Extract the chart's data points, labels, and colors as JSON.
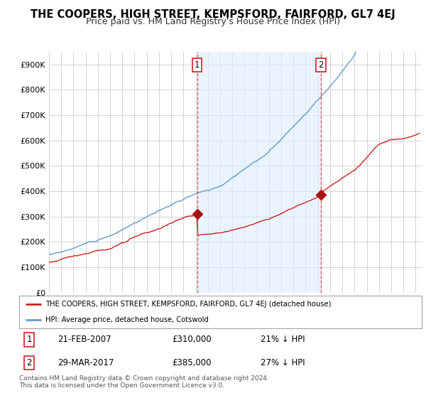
{
  "title": "THE COOPERS, HIGH STREET, KEMPSFORD, FAIRFORD, GL7 4EJ",
  "subtitle": "Price paid vs. HM Land Registry's House Price Index (HPI)",
  "ylabel_ticks": [
    "£0",
    "£100K",
    "£200K",
    "£300K",
    "£400K",
    "£500K",
    "£600K",
    "£700K",
    "£800K",
    "£900K"
  ],
  "ytick_vals": [
    0,
    100000,
    200000,
    300000,
    400000,
    500000,
    600000,
    700000,
    800000,
    900000
  ],
  "ylim": [
    0,
    950000
  ],
  "xlim_start": 1995.0,
  "xlim_end": 2025.5,
  "hpi_color": "#6699cc",
  "price_color": "#cc2222",
  "vline_color": "#cc3333",
  "shade_color": "#ddeeff",
  "marker1_x": 2007.13,
  "marker1_y": 310000,
  "marker2_x": 2017.24,
  "marker2_y": 385000,
  "marker_color": "#aa1111",
  "marker_size": 7,
  "legend_label1": "THE COOPERS, HIGH STREET, KEMPSFORD, FAIRFORD, GL7 4EJ (detached house)",
  "legend_label2": "HPI: Average price, detached house, Cotswold",
  "note1_date": "21-FEB-2007",
  "note1_price": "£310,000",
  "note1_pct": "21% ↓ HPI",
  "note2_date": "29-MAR-2017",
  "note2_price": "£385,000",
  "note2_pct": "27% ↓ HPI",
  "footer": "Contains HM Land Registry data © Crown copyright and database right 2024.\nThis data is licensed under the Open Government Licence v3.0.",
  "background_color": "#ffffff",
  "grid_color": "#cccccc",
  "title_fontsize": 10.5,
  "subtitle_fontsize": 9,
  "tick_fontsize": 8
}
